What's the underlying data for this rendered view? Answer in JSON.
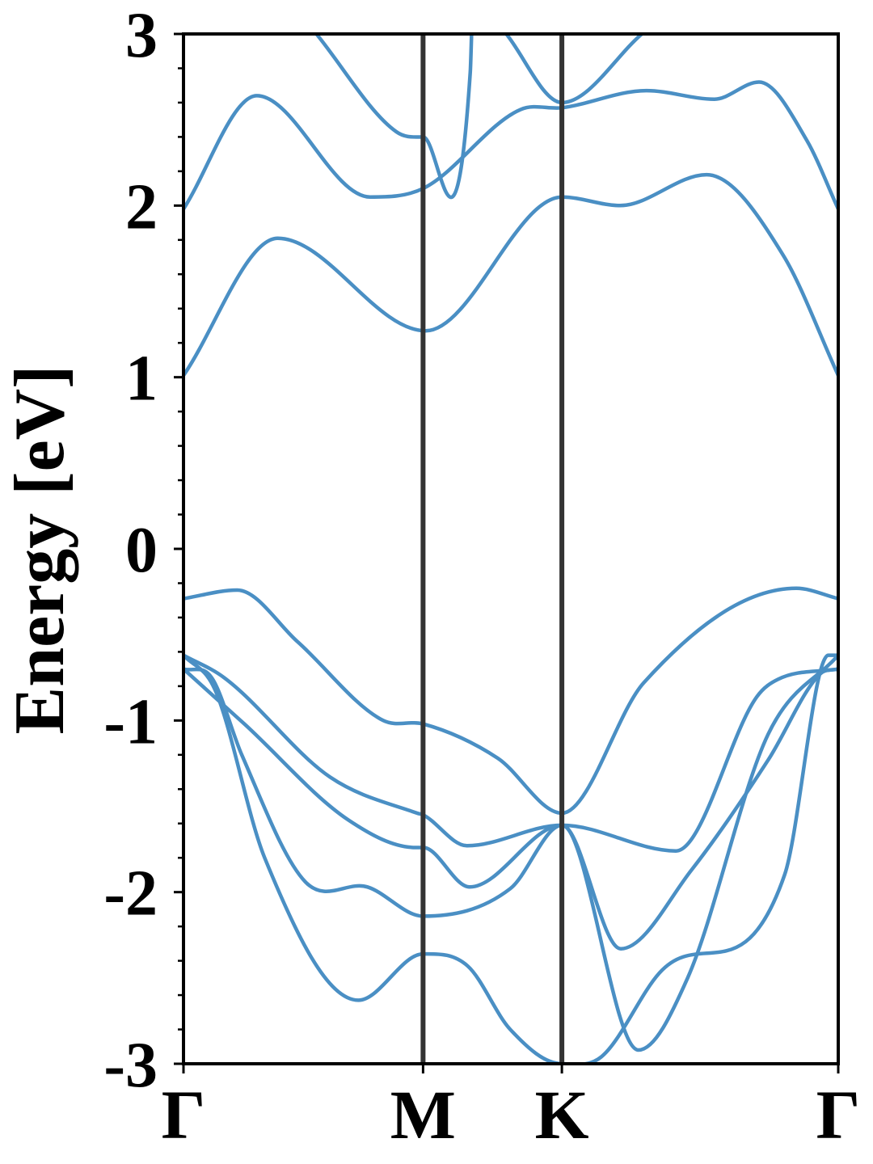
{
  "chart_data": {
    "type": "line",
    "title": "",
    "xlabel": "",
    "ylabel": "Energy [eV]",
    "ylim": [
      -3,
      3
    ],
    "yticks": [
      -3,
      -2,
      -1,
      0,
      1,
      2,
      3
    ],
    "ytick_labels": [
      "-3",
      "-2",
      "-1",
      "0",
      "1",
      "2",
      "3"
    ],
    "y_minor_step": 0.2,
    "x_range": [
      0,
      1
    ],
    "high_symmetry_points": [
      {
        "label": "Γ",
        "x": 0.0
      },
      {
        "label": "M",
        "x": 0.3659
      },
      {
        "label": "K",
        "x": 0.5779
      },
      {
        "label": "Γ",
        "x": 1.0
      }
    ],
    "grid": false,
    "series_color": "#4a8fc4",
    "vline_color": "#333333",
    "series": [
      {
        "x": [
          0.0,
          0.043,
          0.089,
          0.186,
          0.281,
          0.366,
          0.499,
          0.578,
          0.752,
          0.876,
          0.908,
          1.0
        ],
        "y": [
          -0.7,
          -0.75,
          -1.2,
          -1.94,
          -1.97,
          -2.14,
          -1.98,
          -1.61,
          -1.76,
          -0.86,
          -0.76,
          -0.7
        ]
      },
      {
        "x": [
          0.0,
          0.048,
          0.124,
          0.267,
          0.366,
          0.434,
          0.499,
          0.578,
          0.638,
          0.727,
          0.918,
          0.985,
          1.0
        ],
        "y": [
          -0.62,
          -0.82,
          -1.8,
          -2.63,
          -2.36,
          -2.43,
          -2.8,
          -3.0,
          -2.96,
          -2.47,
          -1.9,
          -0.62,
          -0.62
        ]
      },
      {
        "x": [
          0.0,
          0.093,
          0.252,
          0.355,
          0.366,
          0.437,
          0.578,
          0.668,
          0.776,
          0.893,
          0.972,
          1.0
        ],
        "y": [
          -0.7,
          -1.02,
          -1.58,
          -1.74,
          -1.74,
          -1.97,
          -1.61,
          -2.33,
          -1.87,
          -1.23,
          -0.73,
          -0.7
        ]
      },
      {
        "x": [
          0.0,
          0.062,
          0.224,
          0.357,
          0.366,
          0.433,
          0.578,
          0.695,
          0.77,
          0.893,
          1.0
        ],
        "y": [
          -0.62,
          -0.75,
          -1.33,
          -1.54,
          -1.55,
          -1.73,
          -1.61,
          -2.92,
          -2.5,
          -1.08,
          -0.62
        ]
      },
      {
        "x": [
          0.0,
          0.082,
          0.174,
          0.305,
          0.366,
          0.48,
          0.578,
          0.703,
          0.936,
          1.0
        ],
        "y": [
          -0.29,
          -0.24,
          -0.54,
          -1.0,
          -1.02,
          -1.22,
          -1.54,
          -0.78,
          -0.23,
          -0.29
        ]
      },
      {
        "x": [
          0.0,
          0.144,
          0.37,
          0.578,
          0.667,
          0.799,
          0.916,
          1.0
        ],
        "y": [
          1.01,
          1.81,
          1.27,
          2.05,
          2.0,
          2.18,
          1.71,
          1.01
        ]
      },
      {
        "x": [
          0.0,
          0.112,
          0.285,
          0.366,
          0.515,
          0.578,
          0.707,
          0.811,
          0.879,
          0.952,
          1.0
        ],
        "y": [
          1.98,
          2.64,
          2.05,
          2.1,
          2.56,
          2.57,
          2.67,
          2.62,
          2.72,
          2.38,
          1.98
        ]
      },
      {
        "x": [
          0.203,
          0.325,
          0.366,
          0.438,
          0.44
        ],
        "y": [
          3.0,
          2.43,
          2.4,
          2.78,
          3.0
        ]
      },
      {
        "x": [
          0.493,
          0.578,
          0.7
        ],
        "y": [
          3.0,
          2.6,
          3.0
        ]
      }
    ]
  }
}
